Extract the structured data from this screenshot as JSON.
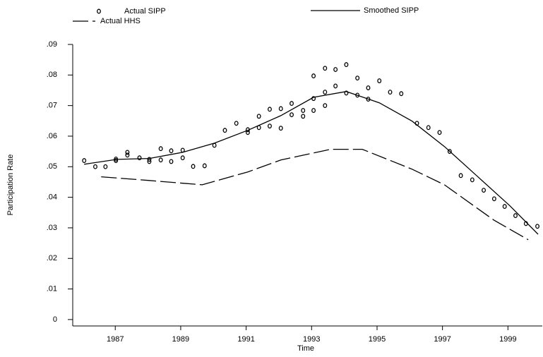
{
  "chart_data": {
    "type": "line",
    "x_label": "Time",
    "y_label": "Participation Rate",
    "xlim": [
      1985.7,
      2000.05
    ],
    "xticks": [
      1987,
      1989,
      1991,
      1993,
      1995,
      1997,
      1999
    ],
    "ylim": [
      -0.0021,
      0.09
    ],
    "yticks": [
      0,
      {
        "value": 0.01,
        "label": ".01"
      },
      {
        "value": 0.02,
        "label": ".02"
      },
      {
        "value": 0.03,
        "label": ".03"
      },
      {
        "value": 0.04,
        "label": ".04"
      },
      {
        "value": 0.05,
        "label": ".05"
      },
      {
        "value": 0.06,
        "label": ".06"
      },
      {
        "value": 0.07,
        "label": ".07"
      },
      {
        "value": 0.08,
        "label": ".08"
      },
      {
        "value": 0.09,
        "label": ".09"
      }
    ],
    "series": [
      {
        "name": "Actual SIPP",
        "kind": "marker",
        "color": "#000000",
        "x": [
          1986.05,
          1986.39,
          1986.7,
          1987.02,
          1987.02,
          1987.37,
          1987.37,
          1987.74,
          1988.04,
          1988.04,
          1988.39,
          1988.39,
          1988.71,
          1988.71,
          1989.06,
          1989.06,
          1989.38,
          1989.73,
          1990.03,
          1990.35,
          1990.7,
          1991.05,
          1991.05,
          1991.39,
          1991.39,
          1991.72,
          1991.72,
          1992.06,
          1992.06,
          1992.39,
          1992.39,
          1992.74,
          1992.74,
          1993.06,
          1993.06,
          1993.06,
          1993.41,
          1993.41,
          1993.41,
          1993.73,
          1993.73,
          1994.06,
          1994.06,
          1994.4,
          1994.4,
          1994.73,
          1994.73,
          1995.07,
          1995.4,
          1995.74,
          1996.22,
          1996.57,
          1996.91,
          1997.22,
          1997.56,
          1997.91,
          1998.26,
          1998.58,
          1998.9,
          1999.23,
          1999.55,
          1999.9
        ],
        "values": [
          0.052,
          0.05,
          0.05,
          0.052,
          0.0525,
          0.0547,
          0.0538,
          0.0529,
          0.0524,
          0.0517,
          0.0559,
          0.0522,
          0.0552,
          0.0517,
          0.0554,
          0.0529,
          0.0501,
          0.0503,
          0.057,
          0.0619,
          0.0642,
          0.0621,
          0.0612,
          0.0665,
          0.0628,
          0.0688,
          0.0633,
          0.069,
          0.0626,
          0.0707,
          0.067,
          0.0684,
          0.0665,
          0.0797,
          0.0723,
          0.0684,
          0.0822,
          0.0744,
          0.07,
          0.0818,
          0.0764,
          0.0834,
          0.0741,
          0.079,
          0.0734,
          0.0758,
          0.0721,
          0.0781,
          0.0744,
          0.0739,
          0.0642,
          0.0628,
          0.0612,
          0.055,
          0.0471,
          0.0457,
          0.0423,
          0.0395,
          0.037,
          0.034,
          0.0314,
          0.0305
        ]
      },
      {
        "name": "Smoothed SIPP",
        "kind": "solid",
        "color": "#000000",
        "x": [
          1986.05,
          1987.05,
          1988.04,
          1989.06,
          1990.03,
          1991.05,
          1992.06,
          1993.06,
          1994.06,
          1995.07,
          1996.07,
          1997.06,
          1998.06,
          1999.06,
          1999.92
        ],
        "values": [
          0.0508,
          0.0524,
          0.0527,
          0.0547,
          0.0577,
          0.0619,
          0.0667,
          0.0727,
          0.0746,
          0.0709,
          0.0649,
          0.0566,
          0.0469,
          0.0372,
          0.0279
        ]
      },
      {
        "name": "Actual HHS",
        "kind": "dashed",
        "color": "#000000",
        "x": [
          1986.57,
          1988.04,
          1989.06,
          1989.66,
          1991.05,
          1992.06,
          1993.06,
          1993.58,
          1994.55,
          1996.07,
          1997.06,
          1998.56,
          1999.62
        ],
        "values": [
          0.0467,
          0.0455,
          0.0446,
          0.0441,
          0.0483,
          0.0522,
          0.0545,
          0.0557,
          0.0557,
          0.0492,
          0.0441,
          0.0326,
          0.0261
        ]
      }
    ]
  }
}
